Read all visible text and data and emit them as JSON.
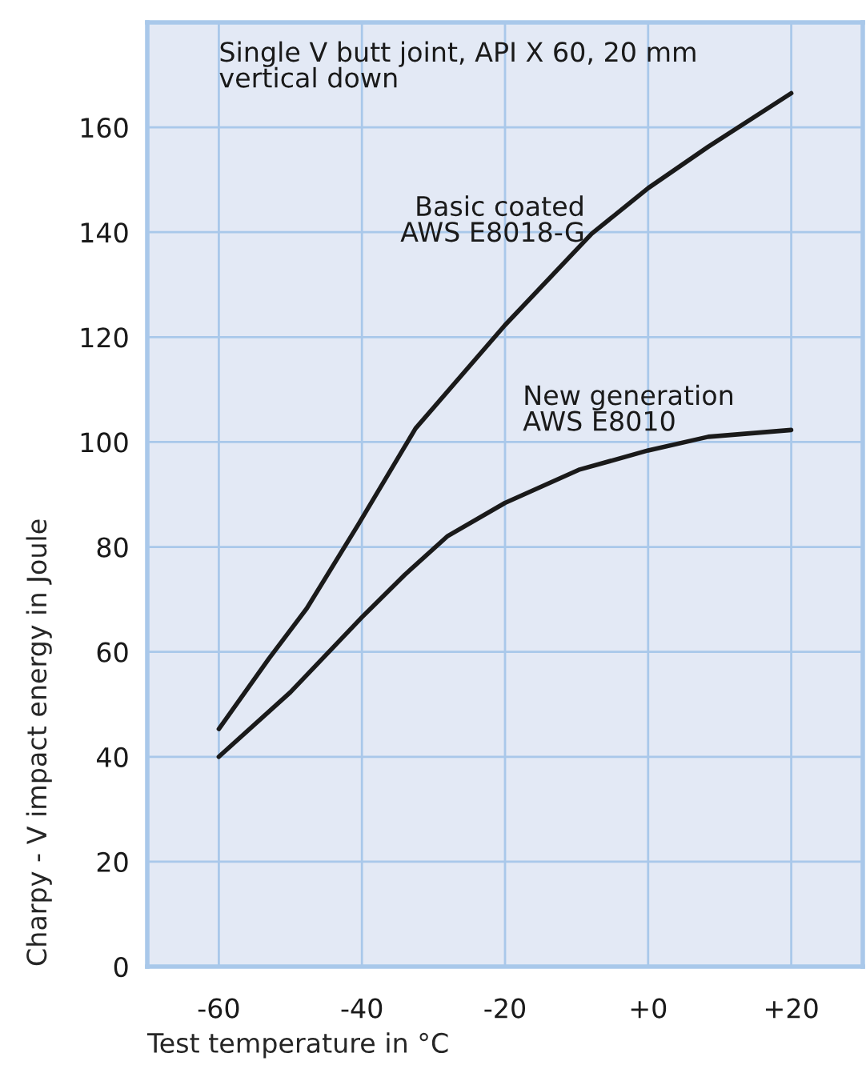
{
  "chart_data": {
    "type": "line",
    "xlabel": "Test temperature in °C",
    "ylabel": "Charpy - V impact energy in Joule",
    "annotations": [
      "Single V butt joint, API X 60, 20 mm\nvertical down"
    ],
    "series": [
      {
        "name": "Basic coated\nAWS E8018-G",
        "color": "#1a1a1a",
        "x": [
          -60,
          -53,
          -47.7,
          -40.5,
          -32.5,
          -20,
          -7.9,
          0,
          8.4,
          20
        ],
        "values": [
          45.3,
          58.7,
          68.3,
          84.3,
          102.6,
          122.3,
          139.7,
          148.4,
          156.3,
          166.5
        ]
      },
      {
        "name": "New generation\nAWS E8010",
        "color": "#1a1a1a",
        "x": [
          -60,
          -50,
          -40,
          -34,
          -28,
          -20,
          -9.7,
          0,
          8.4,
          20
        ],
        "values": [
          40,
          52.3,
          66.6,
          74.7,
          82.1,
          88.4,
          94.7,
          98.4,
          101,
          102.3
        ]
      }
    ],
    "xlim": [
      -70,
      30
    ],
    "ylim": [
      0,
      180
    ],
    "xticks": [
      -60,
      -40,
      -20,
      {
        "value": 0,
        "label": "+0"
      },
      {
        "value": 20,
        "label": "+20"
      }
    ],
    "yticks": [
      0,
      20,
      40,
      60,
      80,
      100,
      120,
      140,
      160
    ],
    "grid": true,
    "legend": false,
    "marker": "none",
    "line_style": "solid"
  }
}
